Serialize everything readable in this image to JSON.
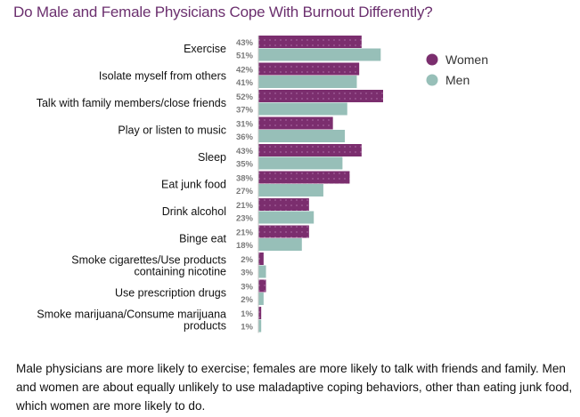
{
  "chart_data": {
    "type": "bar",
    "orientation": "horizontal",
    "title": "Do Male and Female Physicians Cope With Burnout Differently?",
    "xlabel": "",
    "ylabel": "",
    "xlim": [
      0,
      55
    ],
    "grid": false,
    "legend_position": "top-right",
    "categories": [
      [
        "Exercise"
      ],
      [
        "Isolate myself from others"
      ],
      [
        "Talk with family members/close friends"
      ],
      [
        "Play or listen to music"
      ],
      [
        "Sleep"
      ],
      [
        "Eat junk food"
      ],
      [
        "Drink alcohol"
      ],
      [
        "Binge eat"
      ],
      [
        "Smoke cigarettes/Use products",
        "containing nicotine"
      ],
      [
        "Use prescription drugs"
      ],
      [
        "Smoke marijuana/Consume marijuana",
        "products"
      ]
    ],
    "series": [
      {
        "name": "Women",
        "color": "#7b2e6e",
        "pattern": "dotted",
        "values": [
          43,
          42,
          52,
          31,
          43,
          38,
          21,
          21,
          2,
          3,
          1
        ],
        "labels": [
          "43%",
          "42%",
          "52%",
          "31%",
          "43%",
          "38%",
          "21%",
          "21%",
          "2%",
          "3%",
          "1%"
        ]
      },
      {
        "name": "Men",
        "color": "#97bfb8",
        "pattern": "solid",
        "values": [
          51,
          41,
          37,
          36,
          35,
          27,
          23,
          18,
          3,
          2,
          1
        ],
        "labels": [
          "51%",
          "41%",
          "37%",
          "36%",
          "35%",
          "27%",
          "23%",
          "18%",
          "3%",
          "2%",
          "1%"
        ]
      }
    ]
  },
  "caption": "Male physicians are more likely to exercise; females are more likely to talk with friends and family. Men and women are about equally unlikely to use maladaptive coping behaviors, other than eating junk food, which women are more likely to do."
}
